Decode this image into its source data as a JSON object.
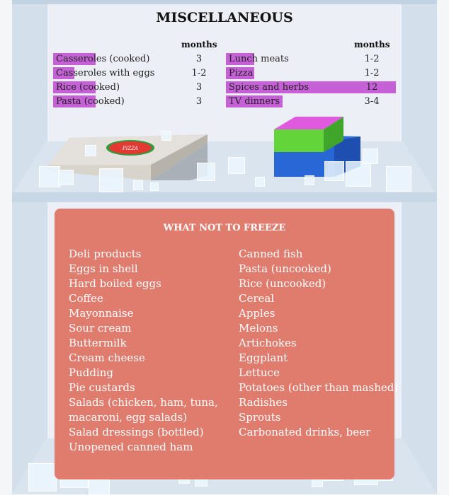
{
  "title": "MISCELLANEOUS",
  "months_header": "months",
  "bar_color": "#c560d6",
  "left_items": [
    {
      "label": "Casseroles (cooked)",
      "months": "3",
      "fill_months": 3
    },
    {
      "label": "Casseroles with eggs",
      "months": "1-2",
      "fill_months": 1.5
    },
    {
      "label": "Rice (cooked)",
      "months": "3",
      "fill_months": 3
    },
    {
      "label": "Pasta (cooked)",
      "months": "3",
      "fill_months": 3
    }
  ],
  "right_items": [
    {
      "label": "Lunch meats",
      "months": "1-2",
      "fill_months": 2
    },
    {
      "label": "Pizza",
      "months": "1-2",
      "fill_months": 2
    },
    {
      "label": "Spices and herbs",
      "months": "12",
      "fill_months": 12
    },
    {
      "label": "TV dinners",
      "months": "3-4",
      "fill_months": 4
    }
  ],
  "pizza_box_label": "PIZZA",
  "not_freeze": {
    "title": "WHAT NOT TO FREEZE",
    "color": "#e07c6e",
    "left": [
      "Deli products",
      "Eggs in shell",
      "Hard boiled eggs",
      "Coffee",
      "Mayonnaise",
      "Sour cream",
      "Buttermilk",
      "Cream cheese",
      "Pudding",
      "Pie custards",
      "Salads (chicken, ham, tuna,",
      "macaroni, egg salads)",
      "Salad dressings (bottled)",
      "Unopened canned ham"
    ],
    "right": [
      "Canned fish",
      "Pasta (uncooked)",
      "Rice (uncooked)",
      "Cereal",
      "Apples",
      "Melons",
      "Artichokes",
      "Eggplant",
      "Lettuce",
      "Potatoes (other than mashed)",
      "Radishes",
      "Sprouts",
      "Carbonated drinks, beer"
    ]
  }
}
